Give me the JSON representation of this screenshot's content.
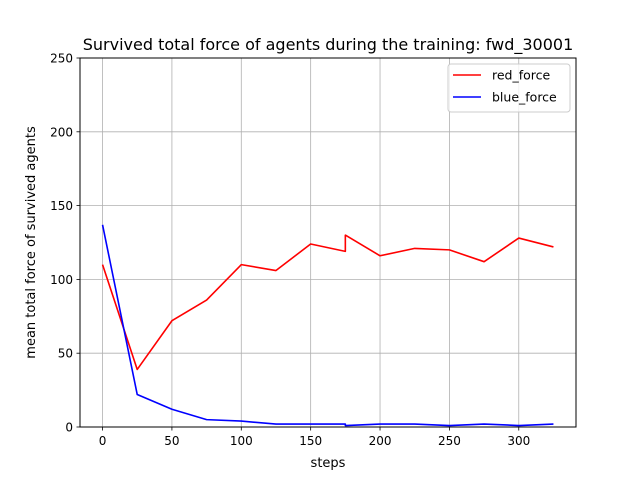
{
  "chart_data": {
    "type": "line",
    "title": "Survived total force of agents during the training: fwd_30001",
    "xlabel": "steps",
    "ylabel": "mean total force of survived agents",
    "xlim": [
      -16.25,
      341.25
    ],
    "ylim": [
      0,
      250
    ],
    "xticks": [
      0,
      50,
      100,
      150,
      200,
      250,
      300
    ],
    "yticks": [
      0,
      50,
      100,
      150,
      200,
      250
    ],
    "grid": true,
    "legend_position": "top-right",
    "series": [
      {
        "name": "red_force",
        "color": "#ff0000",
        "x": [
          0,
          25,
          50,
          75,
          100,
          125,
          150,
          175,
          175,
          200,
          225,
          250,
          275,
          300,
          325
        ],
        "y": [
          110,
          39,
          72,
          86,
          110,
          106,
          124,
          119,
          130,
          116,
          121,
          120,
          112,
          128,
          122
        ]
      },
      {
        "name": "blue_force",
        "color": "#0000ff",
        "x": [
          0,
          25,
          50,
          75,
          100,
          125,
          150,
          175,
          175,
          200,
          225,
          250,
          275,
          300,
          325
        ],
        "y": [
          137,
          22,
          12,
          5,
          4,
          2,
          2,
          2,
          1,
          2,
          2,
          1,
          2,
          1,
          2
        ]
      }
    ]
  }
}
